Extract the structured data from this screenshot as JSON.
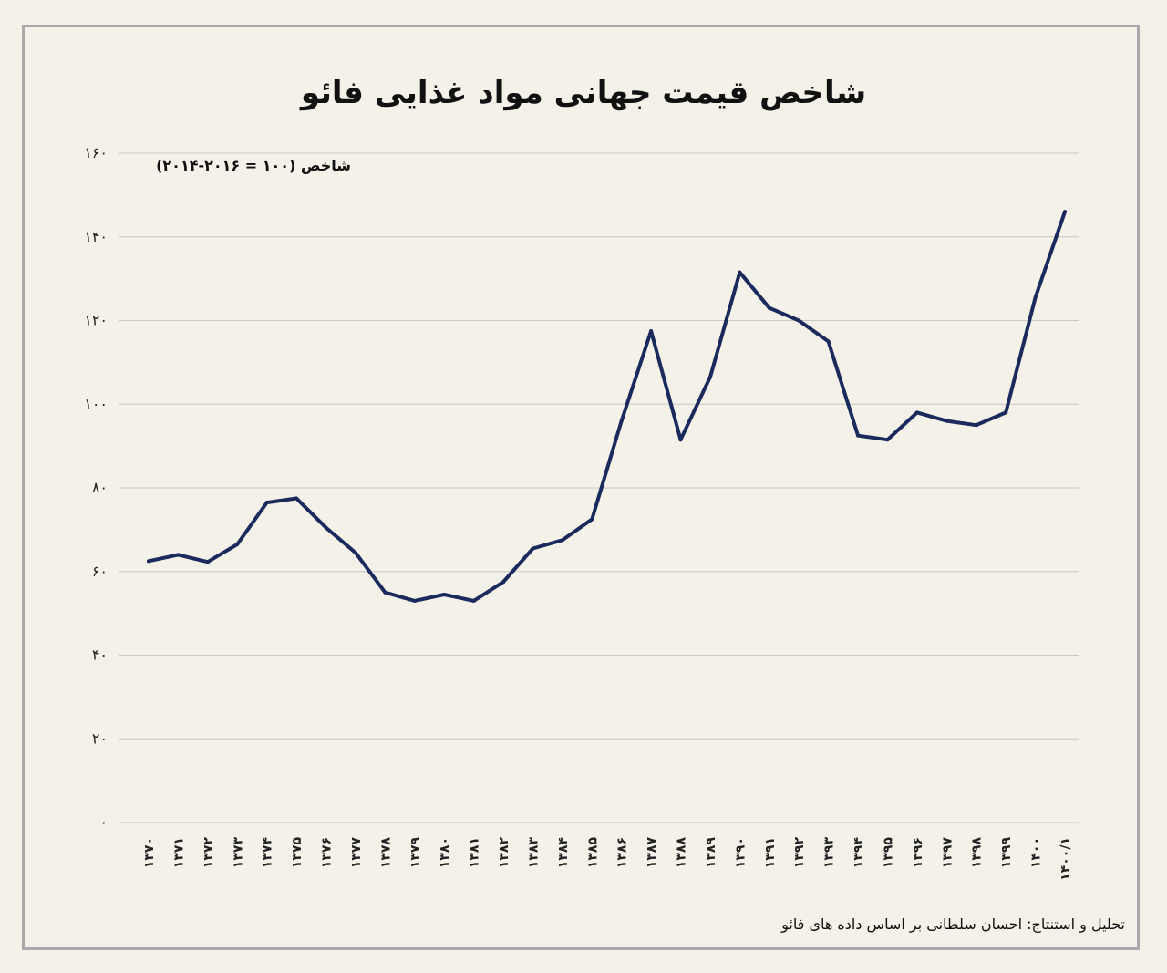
{
  "chart_data": {
    "type": "line",
    "title": "شاخص قیمت جهانی مواد غذایی فائو",
    "ylabel": "شاخص (۱۰۰ = ۲۰۱۶-۲۰۱۴)",
    "xlabel": "",
    "ylim": [
      0,
      160
    ],
    "yticks": [
      0,
      20,
      40,
      60,
      80,
      100,
      120,
      140,
      160
    ],
    "ytick_labels": [
      "۰",
      "۲۰",
      "۴۰",
      "۶۰",
      "۸۰",
      "۱۰۰",
      "۱۲۰",
      "۱۴۰",
      "۱۶۰"
    ],
    "grid": true,
    "categories": [
      "۱۳۷۰",
      "۱۳۷۱",
      "۱۳۷۲",
      "۱۳۷۳",
      "۱۳۷۴",
      "۱۳۷۵",
      "۱۳۷۶",
      "۱۳۷۷",
      "۱۳۷۸",
      "۱۳۷۹",
      "۱۳۸۰",
      "۱۳۸۱",
      "۱۳۸۲",
      "۱۳۸۳",
      "۱۳۸۴",
      "۱۳۸۵",
      "۱۳۸۶",
      "۱۳۸۷",
      "۱۳۸۸",
      "۱۳۸۹",
      "۱۳۹۰",
      "۱۳۹۱",
      "۱۳۹۲",
      "۱۳۹۳",
      "۱۳۹۴",
      "۱۳۹۵",
      "۱۳۹۶",
      "۱۳۹۷",
      "۱۳۹۸",
      "۱۳۹۹",
      "۱۴۰۰",
      "۱۴۰۰/۱"
    ],
    "series": [
      {
        "name": "",
        "color": "#1a2a5c",
        "values": [
          62.5,
          64,
          62.3,
          66.5,
          76.5,
          77.5,
          70.5,
          64.5,
          55,
          53,
          54.5,
          53,
          57.5,
          65.5,
          67.5,
          72.5,
          96,
          117.5,
          91.5,
          106.5,
          131.5,
          123,
          120,
          115,
          92.5,
          91.5,
          98,
          96,
          95,
          98,
          125.5,
          146
        ]
      }
    ]
  },
  "footer": {
    "source": "تحلیل و استنتاج: احسان سلطانی بر اساس داده های فائو"
  },
  "colors": {
    "background": "#f4f1e8",
    "line": "#1a2a5c",
    "grid": "#c8c8c8",
    "frame": "#a9a9a9"
  }
}
